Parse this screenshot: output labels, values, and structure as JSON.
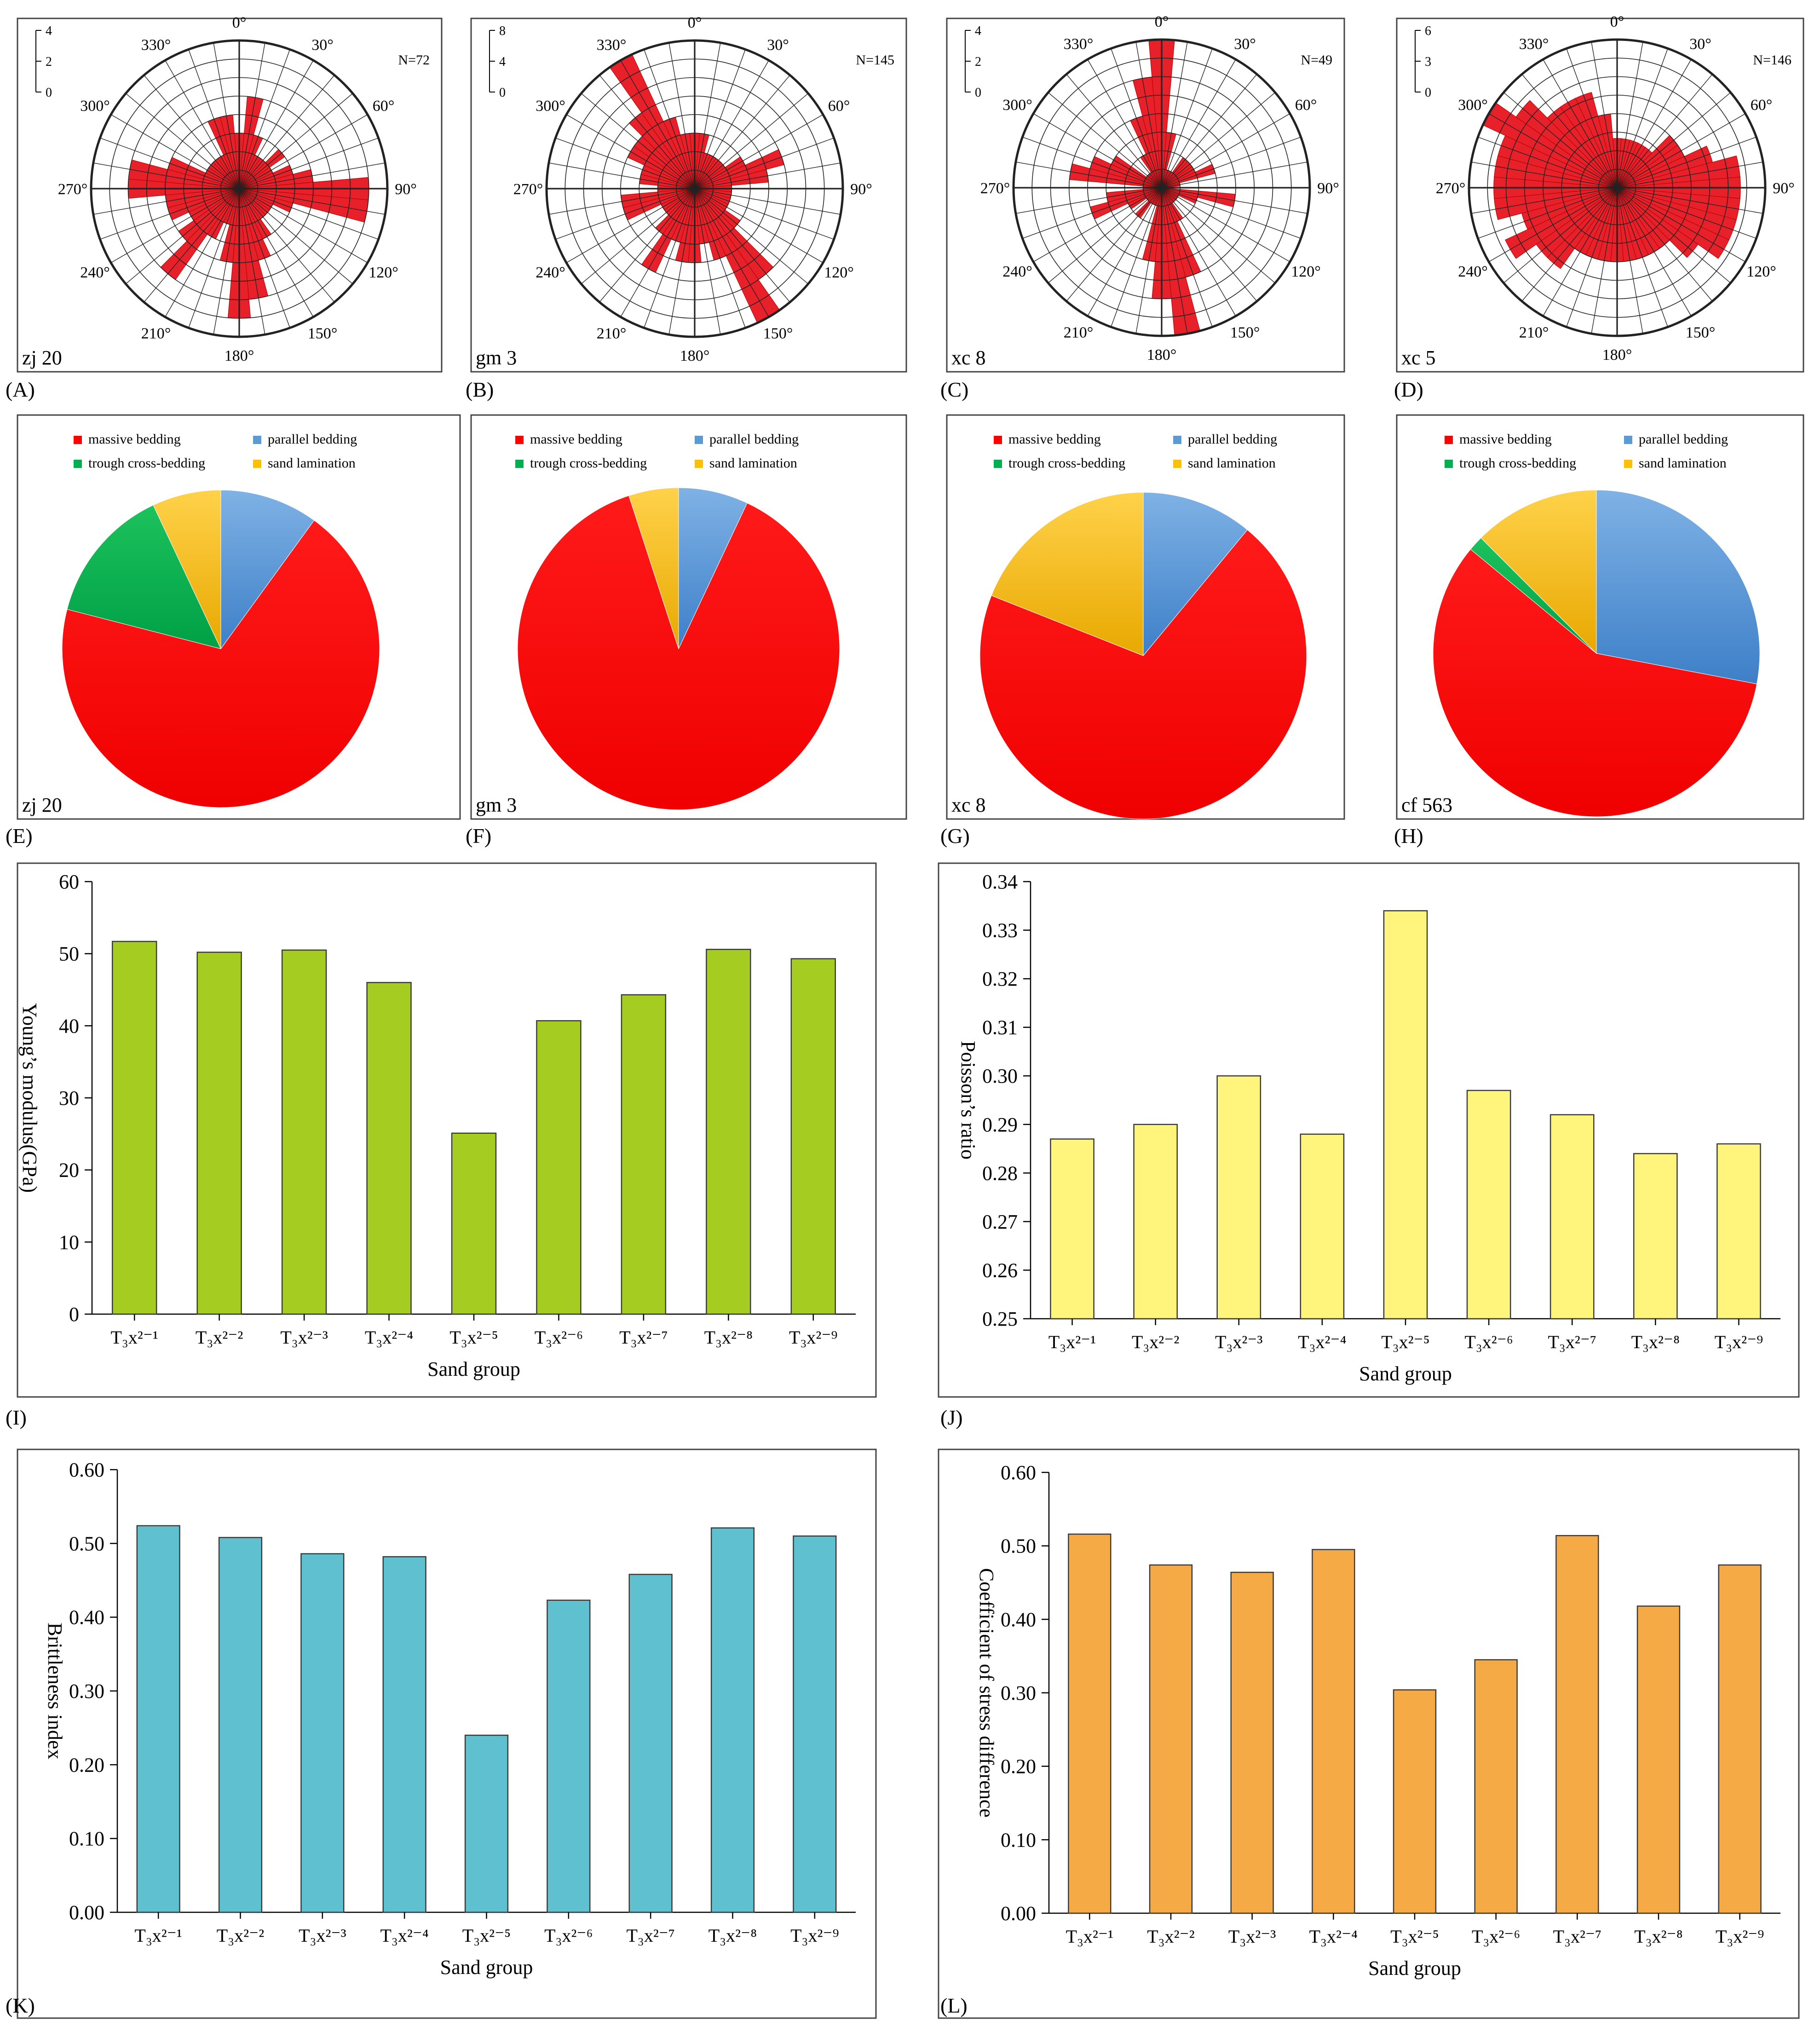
{
  "colors": {
    "rose_fill": "#e8202a",
    "massive": "#ff0000",
    "parallel": "#5b9bd5",
    "trough": "#00b050",
    "sand": "#ffc000",
    "young": "#a4cc21",
    "poisson": "#fff47c",
    "brittle": "#5fc0d0",
    "stress": "#f5aa45"
  },
  "chart_data": [
    {
      "panel": "(A)",
      "type": "rose",
      "sample": "zj 20",
      "n_label": "N=72",
      "scale_ticks": [
        "4",
        "2",
        "0"
      ],
      "scale_max": 4,
      "angle_labels": [
        "0°",
        "30°",
        "60°",
        "90°",
        "120°",
        "150°",
        "180°",
        "210°",
        "240°",
        "270°",
        "300°",
        "330°"
      ],
      "directions_deg": [
        0,
        10,
        20,
        30,
        40,
        50,
        60,
        70,
        80,
        90,
        100,
        110,
        120,
        130,
        140,
        150,
        160,
        170,
        180,
        190,
        200,
        210,
        220,
        230,
        240,
        250,
        260,
        270,
        280,
        290,
        300,
        310,
        320,
        330,
        340,
        350
      ],
      "counts": [
        1.5,
        2.5,
        1.5,
        1,
        1,
        1.5,
        1,
        1.5,
        2,
        3.5,
        3.5,
        1.5,
        1,
        1,
        1,
        1.5,
        2,
        3,
        3.5,
        2,
        1,
        1.5,
        3,
        2,
        1.5,
        2,
        2,
        3,
        3,
        2,
        1,
        1,
        1,
        1,
        2,
        2
      ]
    },
    {
      "panel": "(B)",
      "type": "rose",
      "sample": "gm 3",
      "n_label": "N=145",
      "scale_ticks": [
        "8",
        "4",
        "0"
      ],
      "scale_max": 8,
      "angle_labels": [
        "0°",
        "30°",
        "60°",
        "90°",
        "120°",
        "150°",
        "180°",
        "210°",
        "240°",
        "270°",
        "300°",
        "330°"
      ],
      "directions_deg": [
        0,
        10,
        20,
        30,
        40,
        50,
        60,
        70,
        80,
        90,
        100,
        110,
        120,
        130,
        140,
        150,
        160,
        170,
        180,
        190,
        200,
        210,
        220,
        230,
        240,
        250,
        260,
        270,
        280,
        290,
        300,
        310,
        320,
        330,
        340,
        350
      ],
      "counts": [
        3,
        3,
        2,
        2,
        2,
        2,
        3,
        5,
        4,
        2,
        2,
        2,
        2,
        3,
        6,
        8,
        4,
        3,
        4,
        4,
        3,
        5,
        3,
        2,
        2,
        4,
        4,
        2,
        3,
        3,
        4,
        4,
        5,
        8,
        4,
        3
      ]
    },
    {
      "panel": "(C)",
      "type": "rose",
      "sample": "xc 8",
      "n_label": "N=49",
      "scale_ticks": [
        "4",
        "2",
        "0"
      ],
      "scale_max": 4,
      "angle_labels": [
        "0°",
        "30°",
        "60°",
        "90°",
        "120°",
        "150°",
        "180°",
        "210°",
        "240°",
        "270°",
        "300°",
        "330°"
      ],
      "directions_deg": [
        0,
        10,
        20,
        30,
        40,
        50,
        60,
        70,
        80,
        90,
        100,
        110,
        120,
        130,
        140,
        150,
        160,
        170,
        180,
        190,
        200,
        210,
        220,
        230,
        240,
        250,
        260,
        270,
        280,
        290,
        300,
        310,
        320,
        330,
        340,
        350
      ],
      "counts": [
        4,
        1.5,
        0.5,
        0.5,
        1,
        1,
        1,
        1.5,
        0.5,
        0,
        2,
        1,
        0.5,
        0.5,
        0.5,
        1,
        2.5,
        4,
        3,
        2,
        0.5,
        0.5,
        1,
        0.5,
        1,
        2,
        1.5,
        0.5,
        2.5,
        2,
        1.5,
        0.5,
        0.5,
        1,
        2,
        3
      ]
    },
    {
      "panel": "(D)",
      "type": "rose",
      "sample": "xc 5",
      "n_label": "N=146",
      "scale_ticks": [
        "6",
        "3",
        "0"
      ],
      "scale_max": 6,
      "angle_labels": [
        "0°",
        "30°",
        "60°",
        "90°",
        "120°",
        "150°",
        "180°",
        "210°",
        "240°",
        "270°",
        "300°",
        "330°"
      ],
      "directions_deg": [
        0,
        10,
        20,
        30,
        40,
        50,
        60,
        70,
        80,
        90,
        100,
        110,
        120,
        130,
        140,
        150,
        160,
        170,
        180,
        190,
        200,
        210,
        220,
        230,
        240,
        250,
        260,
        270,
        280,
        290,
        300,
        310,
        320,
        330,
        340,
        350
      ],
      "counts": [
        2,
        2,
        2,
        2,
        2,
        3,
        3,
        4,
        5,
        5,
        5,
        5,
        5,
        4,
        3,
        3,
        3,
        3,
        3,
        3,
        3,
        3,
        4,
        4,
        5,
        4,
        5,
        5,
        5,
        5,
        6,
        5,
        4,
        4,
        4,
        3
      ]
    },
    {
      "panel": "(E)",
      "type": "pie",
      "sample": "zj 20",
      "legend": [
        "massive bedding",
        "parallel bedding",
        "trough cross-bedding",
        "sand lamination"
      ],
      "slices": [
        {
          "label": "parallel bedding",
          "value": 10
        },
        {
          "label": "massive bedding",
          "value": 69
        },
        {
          "label": "trough cross-bedding",
          "value": 14
        },
        {
          "label": "sand lamination",
          "value": 7
        }
      ]
    },
    {
      "panel": "(F)",
      "type": "pie",
      "sample": "gm 3",
      "legend": [
        "massive bedding",
        "parallel bedding",
        "trough cross-bedding",
        "sand lamination"
      ],
      "slices": [
        {
          "label": "parallel bedding",
          "value": 7
        },
        {
          "label": "massive bedding",
          "value": 88
        },
        {
          "label": "trough cross-bedding",
          "value": 0
        },
        {
          "label": "sand lamination",
          "value": 5
        }
      ]
    },
    {
      "panel": "(G)",
      "type": "pie",
      "sample": "xc 8",
      "legend": [
        "massive bedding",
        "parallel bedding",
        "trough cross-bedding",
        "sand lamination"
      ],
      "slices": [
        {
          "label": "parallel bedding",
          "value": 11
        },
        {
          "label": "massive bedding",
          "value": 70
        },
        {
          "label": "trough cross-bedding",
          "value": 0
        },
        {
          "label": "sand lamination",
          "value": 19
        }
      ]
    },
    {
      "panel": "(H)",
      "type": "pie",
      "sample": "cf 563",
      "legend": [
        "massive bedding",
        "parallel bedding",
        "trough cross-bedding",
        "sand lamination"
      ],
      "slices": [
        {
          "label": "parallel bedding",
          "value": 28
        },
        {
          "label": "massive bedding",
          "value": 58
        },
        {
          "label": "trough cross-bedding",
          "value": 1.5
        },
        {
          "label": "sand lamination",
          "value": 12.5
        }
      ]
    },
    {
      "panel": "(I)",
      "type": "bar",
      "categories": [
        "T₃x²⁻¹",
        "T₃x²⁻²",
        "T₃x²⁻³",
        "T₃x²⁻⁴",
        "T₃x²⁻⁵",
        "T₃x²⁻⁶",
        "T₃x²⁻⁷",
        "T₃x²⁻⁸",
        "T₃x²⁻⁹"
      ],
      "values": [
        51.7,
        50.2,
        50.5,
        46.0,
        25.1,
        40.7,
        44.3,
        50.6,
        49.3
      ],
      "xlabel": "Sand group",
      "ylabel": "Young’s modulus(GPa)",
      "ylim": [
        0,
        60
      ],
      "yticks": [
        "0",
        "10",
        "20",
        "30",
        "40",
        "50",
        "60"
      ]
    },
    {
      "panel": "(J)",
      "type": "bar",
      "categories": [
        "T₃x²⁻¹",
        "T₃x²⁻²",
        "T₃x²⁻³",
        "T₃x²⁻⁴",
        "T₃x²⁻⁵",
        "T₃x²⁻⁶",
        "T₃x²⁻⁷",
        "T₃x²⁻⁸",
        "T₃x²⁻⁹"
      ],
      "values": [
        0.287,
        0.29,
        0.3,
        0.288,
        0.334,
        0.297,
        0.292,
        0.284,
        0.286
      ],
      "xlabel": "Sand group",
      "ylabel": "Poisson’s ratio",
      "ylim": [
        0.25,
        0.34
      ],
      "yticks": [
        "0.25",
        "0.26",
        "0.27",
        "0.28",
        "0.29",
        "0.30",
        "0.31",
        "0.32",
        "0.33",
        "0.34"
      ]
    },
    {
      "panel": "(K)",
      "type": "bar",
      "categories": [
        "T₃x²⁻¹",
        "T₃x²⁻²",
        "T₃x²⁻³",
        "T₃x²⁻⁴",
        "T₃x²⁻⁵",
        "T₃x²⁻⁶",
        "T₃x²⁻⁷",
        "T₃x²⁻⁸",
        "T₃x²⁻⁹"
      ],
      "values": [
        0.524,
        0.508,
        0.486,
        0.482,
        0.24,
        0.423,
        0.458,
        0.521,
        0.51
      ],
      "xlabel": "Sand group",
      "ylabel": "Brittleness index",
      "ylim": [
        0,
        0.6
      ],
      "yticks": [
        "0.00",
        "0.10",
        "0.20",
        "0.30",
        "0.40",
        "0.50",
        "0.60"
      ]
    },
    {
      "panel": "(L)",
      "type": "bar",
      "categories": [
        "T₃x²⁻¹",
        "T₃x²⁻²",
        "T₃x²⁻³",
        "T₃x²⁻⁴",
        "T₃x²⁻⁵",
        "T₃x²⁻⁶",
        "T₃x²⁻⁷",
        "T₃x²⁻⁸",
        "T₃x²⁻⁹"
      ],
      "values": [
        0.516,
        0.474,
        0.464,
        0.495,
        0.304,
        0.345,
        0.514,
        0.418,
        0.474
      ],
      "xlabel": "Sand group",
      "ylabel": "Coefficient of stress difference",
      "ylim": [
        0,
        0.6
      ],
      "yticks": [
        "0.00",
        "0.10",
        "0.20",
        "0.30",
        "0.40",
        "0.50",
        "0.60"
      ]
    }
  ]
}
